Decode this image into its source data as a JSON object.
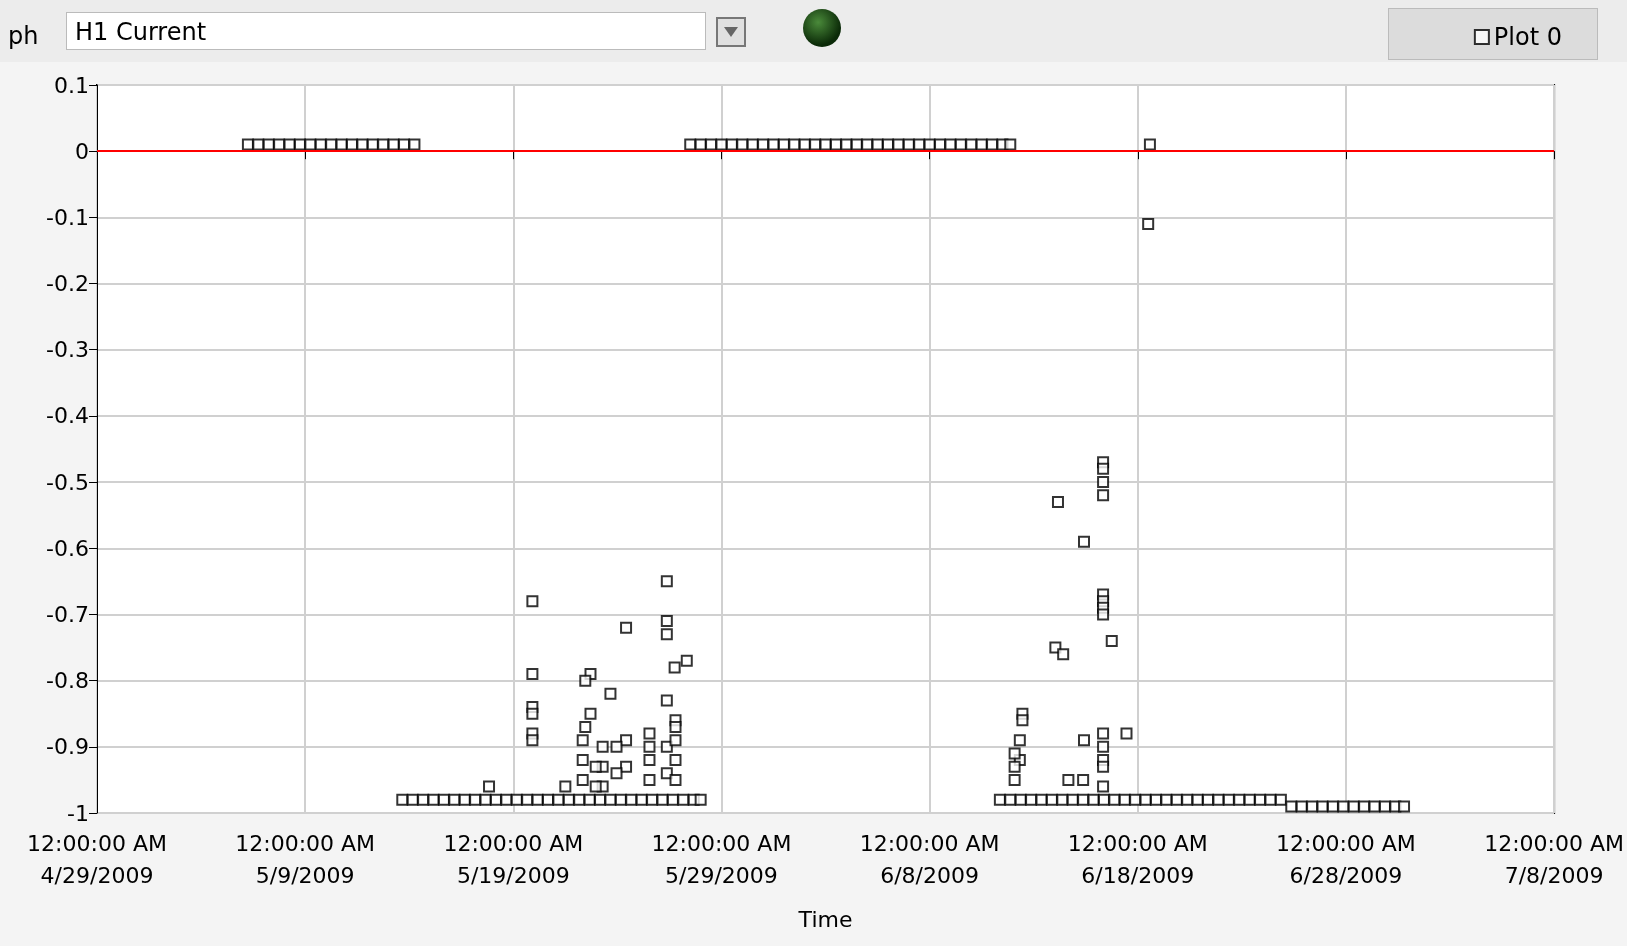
{
  "chart_data": {
    "type": "scatter",
    "title": "H1 Current",
    "xlabel": "Time",
    "annotations": [
      "ph"
    ],
    "xlim": [
      "2009-04-29",
      "2009-07-08"
    ],
    "xticks": [
      {
        "value": "2009-04-29",
        "label": "12:00:00 AM\n4/29/2009"
      },
      {
        "value": "2009-05-09",
        "label": "12:00:00 AM\n5/9/2009"
      },
      {
        "value": "2009-05-19",
        "label": "12:00:00 AM\n5/19/2009"
      },
      {
        "value": "2009-05-29",
        "label": "12:00:00 AM\n5/29/2009"
      },
      {
        "value": "2009-06-08",
        "label": "12:00:00 AM\n6/8/2009"
      },
      {
        "value": "2009-06-18",
        "label": "12:00:00 AM\n6/18/2009"
      },
      {
        "value": "2009-06-28",
        "label": "12:00:00 AM\n6/28/2009"
      },
      {
        "value": "2009-07-08",
        "label": "12:00:00 AM\n7/8/2009"
      }
    ],
    "ylim": [
      -1,
      0.1
    ],
    "yticks": [
      0.1,
      0,
      -0.1,
      -0.2,
      -0.3,
      -0.4,
      -0.5,
      -0.6,
      -0.7,
      -0.8,
      -0.9,
      -1
    ],
    "grid": true,
    "legend": "top right",
    "marker": "square",
    "ref_lines": [
      {
        "axis": "y",
        "value": 0,
        "color": "#ff0000"
      }
    ],
    "series": [
      {
        "name": "Plot 0",
        "color": "#000000",
        "x": [
          "2009-05-06T06:00",
          "2009-05-06T18:00",
          "2009-05-07T06:00",
          "2009-05-07T18:00",
          "2009-05-08T06:00",
          "2009-05-08T18:00",
          "2009-05-09T06:00",
          "2009-05-09T18:00",
          "2009-05-10T06:00",
          "2009-05-10T18:00",
          "2009-05-11T06:00",
          "2009-05-11T18:00",
          "2009-05-12T06:00",
          "2009-05-12T18:00",
          "2009-05-13T06:00",
          "2009-05-13T18:00",
          "2009-05-14T06:00",
          "2009-05-27T12:00",
          "2009-05-28T00:00",
          "2009-05-28T12:00",
          "2009-05-29T00:00",
          "2009-05-29T12:00",
          "2009-05-30T00:00",
          "2009-05-30T12:00",
          "2009-05-31T00:00",
          "2009-05-31T12:00",
          "2009-06-01T00:00",
          "2009-06-01T12:00",
          "2009-06-02T00:00",
          "2009-06-02T12:00",
          "2009-06-03T00:00",
          "2009-06-03T12:00",
          "2009-06-04T00:00",
          "2009-06-04T12:00",
          "2009-06-05T00:00",
          "2009-06-05T12:00",
          "2009-06-06T00:00",
          "2009-06-06T12:00",
          "2009-06-07T00:00",
          "2009-06-07T12:00",
          "2009-06-08T00:00",
          "2009-06-08T12:00",
          "2009-06-09T00:00",
          "2009-06-09T12:00",
          "2009-06-10T00:00",
          "2009-06-10T12:00",
          "2009-06-11T00:00",
          "2009-06-11T12:00",
          "2009-06-11T21:00",
          "2009-06-18T14:00",
          "2009-06-18T12:00",
          "2009-05-13T16:00",
          "2009-05-14T04:00",
          "2009-05-14T16:00",
          "2009-05-15T04:00",
          "2009-05-15T16:00",
          "2009-05-16T04:00",
          "2009-05-16T16:00",
          "2009-05-17T04:00",
          "2009-05-17T16:00",
          "2009-05-18T04:00",
          "2009-05-18T16:00",
          "2009-05-19T04:00",
          "2009-05-19T16:00",
          "2009-05-20T04:00",
          "2009-05-20T16:00",
          "2009-05-21T04:00",
          "2009-05-21T16:00",
          "2009-05-22T04:00",
          "2009-05-22T16:00",
          "2009-05-23T04:00",
          "2009-05-23T16:00",
          "2009-05-24T04:00",
          "2009-05-24T16:00",
          "2009-05-25T04:00",
          "2009-05-25T16:00",
          "2009-05-26T04:00",
          "2009-05-26T16:00",
          "2009-05-27T04:00",
          "2009-05-27T16:00",
          "2009-05-28T00:00",
          "2009-06-11T09:00",
          "2009-06-11T21:00",
          "2009-06-12T09:00",
          "2009-06-12T21:00",
          "2009-06-13T09:00",
          "2009-06-13T21:00",
          "2009-06-14T09:00",
          "2009-06-14T21:00",
          "2009-06-15T09:00",
          "2009-06-15T21:00",
          "2009-06-16T09:00",
          "2009-06-16T21:00",
          "2009-06-17T09:00",
          "2009-06-17T21:00",
          "2009-06-18T09:00",
          "2009-06-18T21:00",
          "2009-06-19T09:00",
          "2009-06-19T21:00",
          "2009-06-20T09:00",
          "2009-06-20T21:00",
          "2009-06-21T09:00",
          "2009-06-21T21:00",
          "2009-06-22T09:00",
          "2009-06-22T21:00",
          "2009-06-23T09:00",
          "2009-06-23T21:00",
          "2009-06-24T09:00",
          "2009-06-24T21:00",
          "2009-06-25T09:00",
          "2009-06-25T21:00",
          "2009-06-26T09:00",
          "2009-06-26T21:00",
          "2009-06-27T09:00",
          "2009-06-27T21:00",
          "2009-06-28T09:00",
          "2009-06-28T21:00",
          "2009-06-29T09:00",
          "2009-06-29T21:00",
          "2009-06-30T09:00",
          "2009-06-30T19:00",
          "2009-05-17T20:00",
          "2009-05-19T22:00",
          "2009-05-19T22:00",
          "2009-05-19T22:00",
          "2009-05-19T22:00",
          "2009-05-19T22:00",
          "2009-05-19T22:00",
          "2009-05-24T10:00",
          "2009-05-26T09:00",
          "2009-05-26T09:00",
          "2009-05-26T09:00",
          "2009-05-26T09:00",
          "2009-05-26T09:00",
          "2009-05-26T09:00",
          "2009-05-26T18:00",
          "2009-05-27T08:00",
          "2009-05-22T17:00",
          "2009-05-22T17:00",
          "2009-05-22T11:00",
          "2009-05-22T11:00",
          "2009-05-22T08:00",
          "2009-05-22T08:00",
          "2009-05-22T08:00",
          "2009-05-23T16:00",
          "2009-05-26T19:00",
          "2009-05-26T19:00",
          "2009-05-26T19:00",
          "2009-05-26T19:00",
          "2009-05-26T19:00",
          "2009-05-24T10:00",
          "2009-05-24T10:00",
          "2009-05-23T23:00",
          "2009-05-23T23:00",
          "2009-05-23T07:00",
          "2009-05-23T07:00",
          "2009-05-23T07:00",
          "2009-05-25T13:00",
          "2009-05-25T13:00",
          "2009-05-25T13:00",
          "2009-05-25T13:00",
          "2009-05-22T23:00",
          "2009-05-22T23:00",
          "2009-05-21T12:00",
          "2009-06-16T08:00",
          "2009-06-16T08:00",
          "2009-06-16T08:00",
          "2009-06-16T08:00",
          "2009-06-16T08:00",
          "2009-06-16T08:00",
          "2009-06-16T08:00",
          "2009-06-16T08:00",
          "2009-06-16T08:00",
          "2009-06-16T08:00",
          "2009-06-16T08:00",
          "2009-06-16T08:00",
          "2009-06-16T08:00",
          "2009-06-14T04:00",
          "2009-06-15T10:00",
          "2009-06-15T10:00",
          "2009-06-16T18:00",
          "2009-06-14T01:00",
          "2009-06-14T10:00",
          "2009-06-12T11:00",
          "2009-06-12T11:00",
          "2009-06-12T08:00",
          "2009-06-12T08:00",
          "2009-06-12T02:00",
          "2009-06-12T02:00",
          "2009-06-12T02:00",
          "2009-06-17T11:00",
          "2009-06-14T16:00",
          "2009-06-15T09:00"
        ],
        "values": [
          0.01,
          0.01,
          0.01,
          0.01,
          0.01,
          0.01,
          0.01,
          0.01,
          0.01,
          0.01,
          0.01,
          0.01,
          0.01,
          0.01,
          0.01,
          0.01,
          0.01,
          0.01,
          0.01,
          0.01,
          0.01,
          0.01,
          0.01,
          0.01,
          0.01,
          0.01,
          0.01,
          0.01,
          0.01,
          0.01,
          0.01,
          0.01,
          0.01,
          0.01,
          0.01,
          0.01,
          0.01,
          0.01,
          0.01,
          0.01,
          0.01,
          0.01,
          0.01,
          0.01,
          0.01,
          0.01,
          0.01,
          0.01,
          0.01,
          0.01,
          -0.11,
          -0.98,
          -0.98,
          -0.98,
          -0.98,
          -0.98,
          -0.98,
          -0.98,
          -0.98,
          -0.98,
          -0.98,
          -0.98,
          -0.98,
          -0.98,
          -0.98,
          -0.98,
          -0.98,
          -0.98,
          -0.98,
          -0.98,
          -0.98,
          -0.98,
          -0.98,
          -0.98,
          -0.98,
          -0.98,
          -0.98,
          -0.98,
          -0.98,
          -0.98,
          -0.98,
          -0.98,
          -0.98,
          -0.98,
          -0.98,
          -0.98,
          -0.98,
          -0.98,
          -0.98,
          -0.98,
          -0.98,
          -0.98,
          -0.98,
          -0.98,
          -0.98,
          -0.98,
          -0.98,
          -0.98,
          -0.98,
          -0.98,
          -0.98,
          -0.98,
          -0.98,
          -0.98,
          -0.98,
          -0.98,
          -0.98,
          -0.98,
          -0.98,
          -0.99,
          -0.99,
          -0.99,
          -0.99,
          -0.99,
          -0.99,
          -0.99,
          -0.99,
          -0.99,
          -0.99,
          -0.99,
          -0.99,
          -0.96,
          -0.68,
          -0.79,
          -0.84,
          -0.85,
          -0.88,
          -0.89,
          -0.72,
          -0.65,
          -0.71,
          -0.73,
          -0.83,
          -0.9,
          -0.94,
          -0.78,
          -0.77,
          -0.79,
          -0.85,
          -0.8,
          -0.87,
          -0.89,
          -0.92,
          -0.95,
          -0.82,
          -0.86,
          -0.87,
          -0.89,
          -0.92,
          -0.95,
          -0.89,
          -0.93,
          -0.9,
          -0.94,
          -0.9,
          -0.93,
          -0.96,
          -0.88,
          -0.9,
          -0.92,
          -0.95,
          -0.93,
          -0.96,
          -0.96,
          -0.47,
          -0.48,
          -0.5,
          -0.52,
          -0.67,
          -0.68,
          -0.69,
          -0.7,
          -0.88,
          -0.9,
          -0.92,
          -0.93,
          -0.96,
          -0.53,
          -0.59,
          -0.89,
          -0.74,
          -0.75,
          -0.76,
          -0.85,
          -0.86,
          -0.89,
          -0.92,
          -0.91,
          -0.93,
          -0.95,
          -0.88,
          -0.95,
          -0.95
        ]
      }
    ]
  }
}
